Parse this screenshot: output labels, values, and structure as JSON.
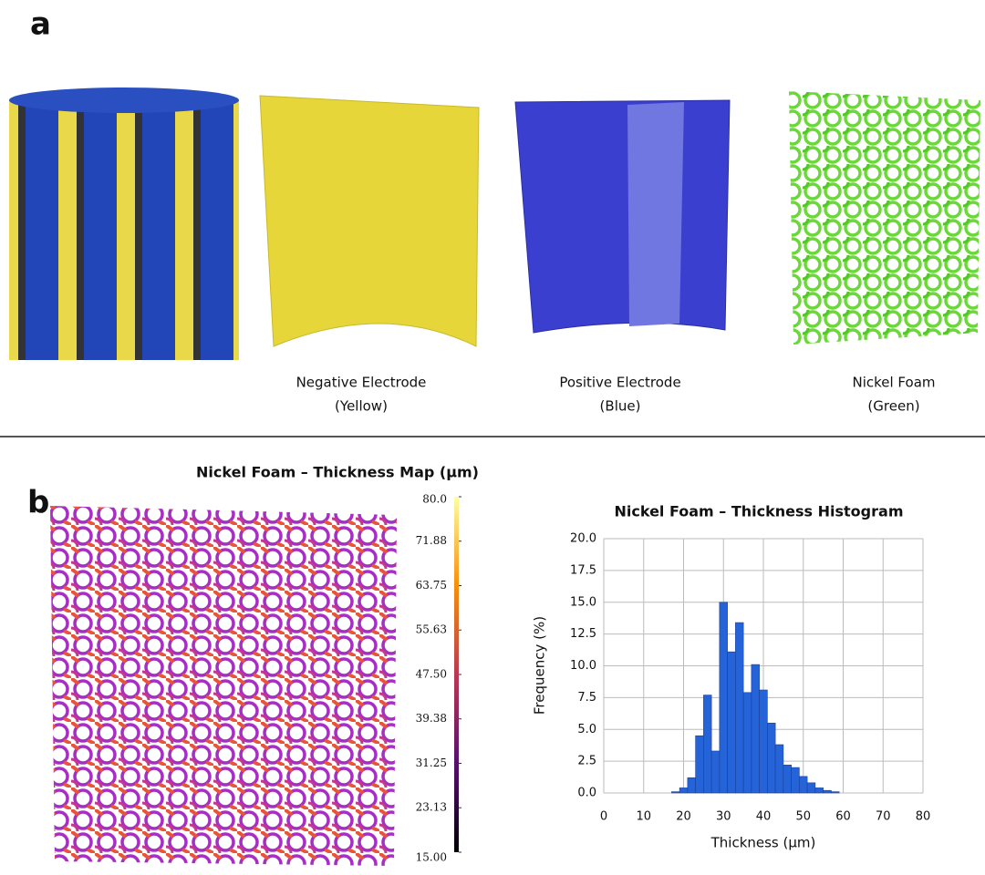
{
  "panel_a": {
    "label": "a",
    "captions": [
      {
        "name": "Negative Electrode",
        "color": "(Yellow)"
      },
      {
        "name": "Positive Electrode",
        "color": "(Blue)"
      },
      {
        "name": "Nickel Foam",
        "color": "(Green)"
      }
    ]
  },
  "panel_b": {
    "label": "b",
    "colorbar": {
      "title": "Nickel Foam – Thickness Map (µm)",
      "lim": [
        15,
        80
      ],
      "ticks": [
        {
          "value": 80,
          "label": "80.0"
        },
        71.88,
        63.75,
        55.63,
        {
          "value": 47.5,
          "label": "47.50"
        },
        39.38,
        31.25,
        23.13,
        {
          "value": 15,
          "label": "15.00"
        }
      ]
    }
  },
  "chart_data": {
    "type": "histogram",
    "title": "Nickel Foam – Thickness Histogram",
    "x_label": "Thickness (µm)",
    "y_label": "Frequency (%)",
    "color": "#2563d9",
    "grid": true,
    "bins": [
      17,
      19,
      21,
      23,
      25,
      27,
      29,
      31,
      33,
      35,
      37,
      39,
      41,
      43,
      45,
      47,
      49,
      51,
      53,
      55,
      57,
      59
    ],
    "values": [
      0.1,
      0.4,
      1.2,
      4.5,
      7.7,
      3.3,
      15.0,
      11.1,
      13.4,
      7.9,
      10.1,
      8.1,
      5.5,
      3.8,
      2.2,
      2.0,
      1.3,
      0.8,
      0.4,
      0.2,
      0.1
    ],
    "xlim": [
      0,
      80
    ],
    "xticks": [
      0,
      10,
      20,
      30,
      40,
      50,
      60,
      70,
      80
    ],
    "ylim": [
      0,
      20
    ],
    "yticks": [
      {
        "value": 0,
        "label": "0.0"
      },
      2.5,
      {
        "value": 5,
        "label": "5.0"
      },
      7.5,
      {
        "value": 10,
        "label": "10.0"
      },
      12.5,
      {
        "value": 15,
        "label": "15.0"
      },
      17.5,
      {
        "value": 20,
        "label": "20.0"
      }
    ]
  }
}
